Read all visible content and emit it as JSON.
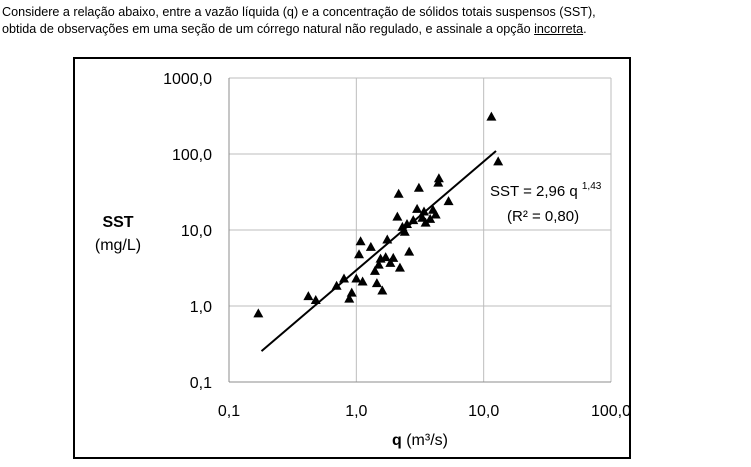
{
  "question": {
    "line1": "Considere a relação abaixo, entre a vazão líquida (q) e a concentração de sólidos totais suspensos (SST),",
    "line2_before": "obtida de observações em uma seção de um córrego natural não regulado, e assinale a opção ",
    "line2_underlined": "incorreta",
    "line2_after": "."
  },
  "chart_data": {
    "type": "scatter",
    "xscale": "log",
    "yscale": "log",
    "xlim": [
      0.1,
      100
    ],
    "ylim": [
      0.1,
      1000
    ],
    "grid": true,
    "xlabel": "q (m³/s)",
    "xlabel_bold": "q",
    "xlabel_unit": "(m³/s)",
    "ylabel": "SST (mg/L)",
    "ylabel_bold": "SST",
    "ylabel_unit": "(mg/L)",
    "x_tick_labels": [
      "0,1",
      "1,0",
      "10,0",
      "100,0"
    ],
    "x_ticks": [
      0.1,
      1,
      10,
      100
    ],
    "y_tick_labels": [
      "0,1",
      "1,0",
      "10,0",
      "100,0",
      "1000,0"
    ],
    "y_ticks": [
      0.1,
      1,
      10,
      100,
      1000
    ],
    "marker": "triangle",
    "marker_color": "#000000",
    "points": [
      {
        "x": 0.17,
        "y": 0.8
      },
      {
        "x": 0.42,
        "y": 1.35
      },
      {
        "x": 0.48,
        "y": 1.2
      },
      {
        "x": 0.7,
        "y": 1.85
      },
      {
        "x": 0.8,
        "y": 2.3
      },
      {
        "x": 0.88,
        "y": 1.25
      },
      {
        "x": 0.92,
        "y": 1.5
      },
      {
        "x": 1.0,
        "y": 2.3
      },
      {
        "x": 1.05,
        "y": 4.8
      },
      {
        "x": 1.08,
        "y": 7.1
      },
      {
        "x": 1.12,
        "y": 2.1
      },
      {
        "x": 1.3,
        "y": 6.0
      },
      {
        "x": 1.4,
        "y": 2.9
      },
      {
        "x": 1.45,
        "y": 2.0
      },
      {
        "x": 1.5,
        "y": 3.5
      },
      {
        "x": 1.55,
        "y": 4.2
      },
      {
        "x": 1.6,
        "y": 1.6
      },
      {
        "x": 1.7,
        "y": 4.4
      },
      {
        "x": 1.75,
        "y": 7.5
      },
      {
        "x": 1.85,
        "y": 3.7
      },
      {
        "x": 1.95,
        "y": 4.3
      },
      {
        "x": 2.1,
        "y": 15.0
      },
      {
        "x": 2.15,
        "y": 30.0
      },
      {
        "x": 2.2,
        "y": 3.2
      },
      {
        "x": 2.3,
        "y": 11.0
      },
      {
        "x": 2.4,
        "y": 9.5
      },
      {
        "x": 2.5,
        "y": 12.0
      },
      {
        "x": 2.6,
        "y": 5.2
      },
      {
        "x": 2.8,
        "y": 13.5
      },
      {
        "x": 3.0,
        "y": 19.0
      },
      {
        "x": 3.1,
        "y": 36.0
      },
      {
        "x": 3.3,
        "y": 14.5
      },
      {
        "x": 3.4,
        "y": 17.5
      },
      {
        "x": 3.5,
        "y": 12.5
      },
      {
        "x": 3.8,
        "y": 14.0
      },
      {
        "x": 4.0,
        "y": 18.5
      },
      {
        "x": 4.2,
        "y": 16.0
      },
      {
        "x": 4.4,
        "y": 42.0
      },
      {
        "x": 4.45,
        "y": 48.0
      },
      {
        "x": 5.3,
        "y": 24.0
      },
      {
        "x": 11.5,
        "y": 310.0
      },
      {
        "x": 13.0,
        "y": 80.0
      }
    ],
    "fit": {
      "coefficient": 2.96,
      "exponent": 1.43,
      "x_range": [
        0.18,
        12.5
      ],
      "label_prefix": "SST = 2,96 q",
      "label_exponent": "1,43",
      "r2_label": "(R² = 0,80)"
    }
  }
}
